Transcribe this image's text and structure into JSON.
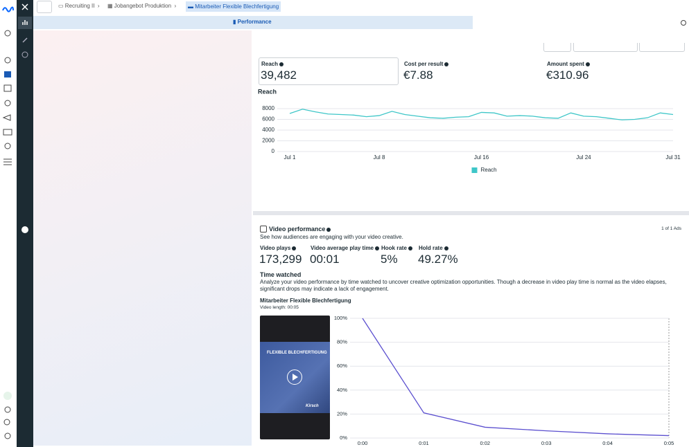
{
  "breadcrumbs": [
    "Recruiting II",
    "Jobangebot Produktion",
    "Mitarbeiter Flexible Blechfertigung"
  ],
  "tab": "Performance",
  "metrics": [
    {
      "label": "Reach",
      "value": "39,482"
    },
    {
      "label": "Cost per result",
      "value": "€7.88"
    },
    {
      "label": "Amount spent",
      "value": "€310.96"
    }
  ],
  "video_section": {
    "title": "Video performance",
    "subtitle": "See how audiences are engaging with your video creative.",
    "pager": "1 of 1 Ads",
    "metrics": [
      {
        "label": "Video plays",
        "value": "173,299"
      },
      {
        "label": "Video average play time",
        "value": "00:01"
      },
      {
        "label": "Hook rate",
        "value": "5%"
      },
      {
        "label": "Hold rate",
        "value": "49.27%"
      }
    ],
    "time_watched_title": "Time watched",
    "time_watched_description": "Analyze your video performance by time watched to uncover creative optimization opportunities. Though a decrease in video play time is normal as the video elapses, significant drops may indicate a lack of engagement.",
    "ad_name": "Mitarbeiter Flexible Blechfertigung",
    "video_length": "Video length: 00:05",
    "thumbnail_title": "FLEXIBLE BLECHFERTIGUNG",
    "thumbnail_brand": "Kirsch"
  },
  "chart_data": [
    {
      "type": "line",
      "title": "Reach",
      "categories": [
        "Jul 1",
        null,
        null,
        null,
        null,
        null,
        null,
        "Jul 8",
        null,
        null,
        null,
        null,
        null,
        null,
        null,
        "Jul 16",
        null,
        null,
        null,
        null,
        null,
        null,
        null,
        "Jul 24",
        null,
        null,
        null,
        null,
        null,
        null,
        "Jul 31"
      ],
      "series": [
        {
          "name": "Reach",
          "color": "#3ec6c8",
          "values": [
            7100,
            7900,
            7400,
            7000,
            6900,
            6800,
            6500,
            6700,
            7500,
            6900,
            6600,
            6300,
            6200,
            6400,
            6500,
            7300,
            7200,
            6600,
            6700,
            6600,
            6300,
            6200,
            7200,
            6600,
            6500,
            6200,
            5900,
            6000,
            6300,
            7200,
            6900
          ]
        }
      ],
      "ylim": [
        0,
        8000
      ],
      "yticks": [
        0,
        2000,
        4000,
        6000,
        8000
      ],
      "grid": true,
      "legend": "bottom"
    },
    {
      "type": "line",
      "x": [
        0,
        1,
        2,
        3,
        4,
        5
      ],
      "xlim": [
        0,
        5
      ],
      "xticks": [
        {
          "value": 0,
          "label": "0:00"
        },
        {
          "value": 1,
          "label": "0:01"
        },
        {
          "value": 2,
          "label": "0:02"
        },
        {
          "value": 3,
          "label": "0:03"
        },
        {
          "value": 4,
          "label": "0:04"
        },
        {
          "value": 5,
          "label": "0:05"
        }
      ],
      "series": [
        {
          "color": "#5b4fcf",
          "values": [
            100,
            21,
            9,
            6,
            3.5,
            2
          ]
        }
      ],
      "ylim": [
        0,
        100
      ],
      "yticks": [
        {
          "value": 0,
          "label": "0%"
        },
        {
          "value": 20,
          "label": "20%"
        },
        {
          "value": 40,
          "label": "40%"
        },
        {
          "value": 60,
          "label": "60%"
        },
        {
          "value": 80,
          "label": "80%"
        },
        {
          "value": 100,
          "label": "100%"
        }
      ],
      "grid": true
    }
  ]
}
